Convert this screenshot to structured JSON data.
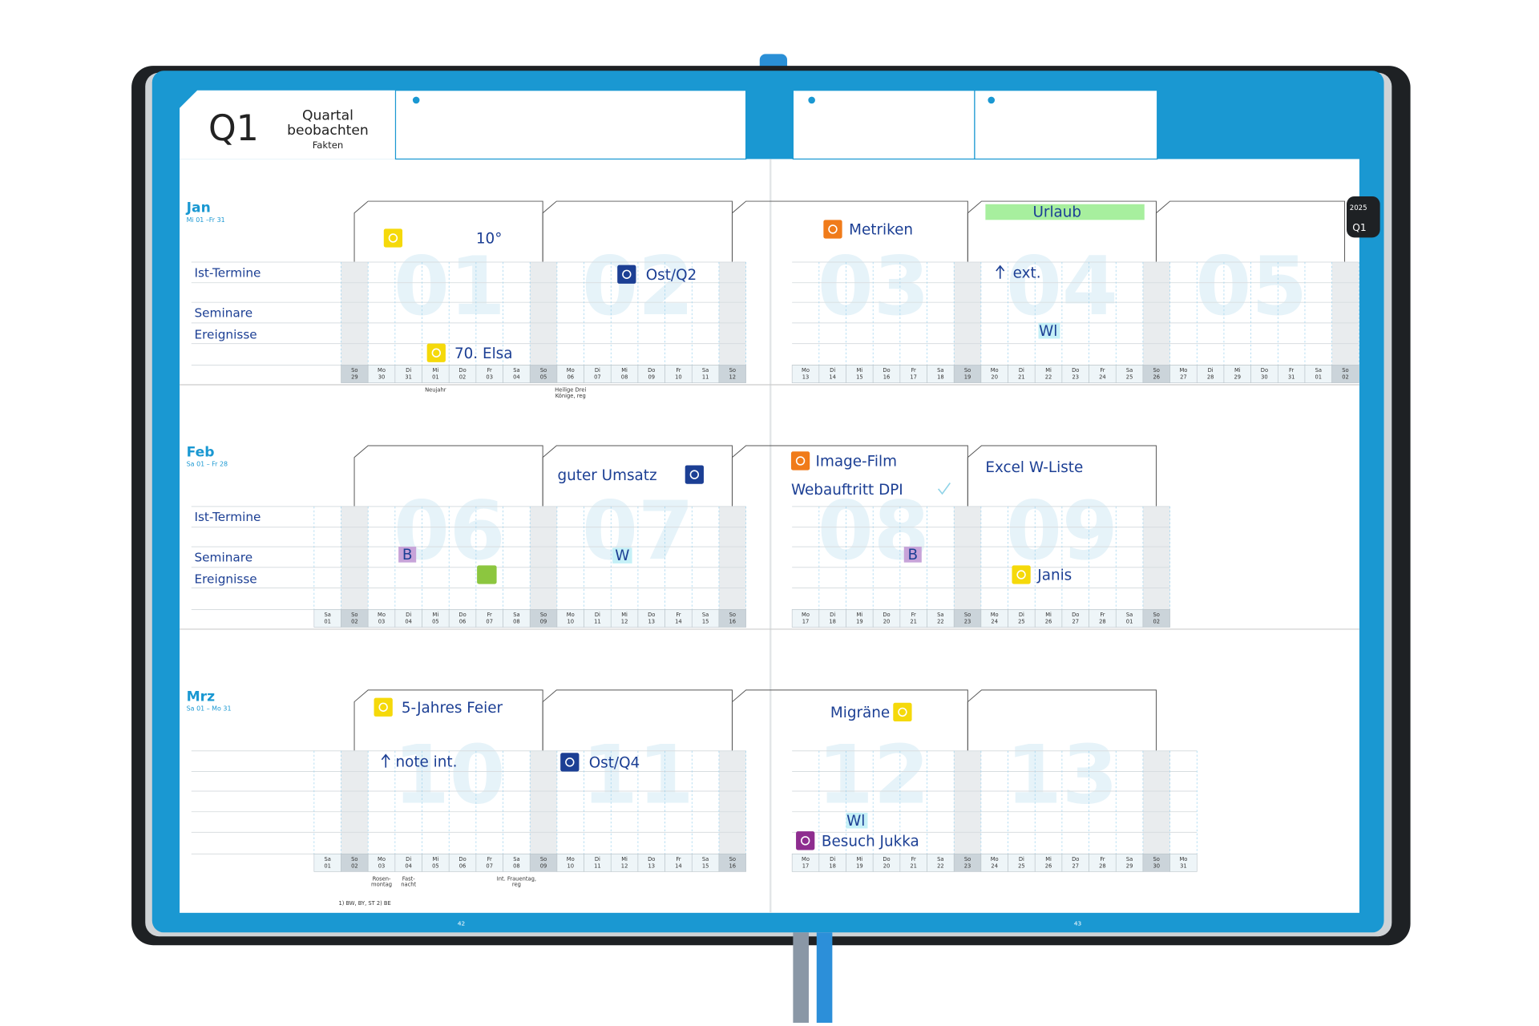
{
  "header": {
    "quarter": "Q1",
    "title_line1": "Quartal",
    "title_line2": "beobachten",
    "subtitle": "Fakten"
  },
  "side_tab": {
    "year": "2025",
    "quarter": "Q1"
  },
  "months": [
    {
      "name": "Jan",
      "range": "Mi 01 –Fr 31",
      "rows": [
        "Ist-Termine",
        "Seminare",
        "Ereignisse"
      ],
      "weeks": [
        "01",
        "02",
        "03",
        "04",
        "05"
      ],
      "days": [
        [
          "So",
          "29"
        ],
        [
          "Mo",
          "30"
        ],
        [
          "Di",
          "31"
        ],
        [
          "Mi",
          "01"
        ],
        [
          "Do",
          "02"
        ],
        [
          "Fr",
          "03"
        ],
        [
          "Sa",
          "04"
        ],
        [
          "So",
          "05"
        ],
        [
          "Mo",
          "06"
        ],
        [
          "Di",
          "07"
        ],
        [
          "Mi",
          "08"
        ],
        [
          "Do",
          "09"
        ],
        [
          "Fr",
          "10"
        ],
        [
          "Sa",
          "11"
        ],
        [
          "So",
          "12"
        ],
        [
          "Mo",
          "13"
        ],
        [
          "Di",
          "14"
        ],
        [
          "Mi",
          "15"
        ],
        [
          "Do",
          "16"
        ],
        [
          "Fr",
          "17"
        ],
        [
          "Sa",
          "18"
        ],
        [
          "So",
          "19"
        ],
        [
          "Mo",
          "20"
        ],
        [
          "Di",
          "21"
        ],
        [
          "Mi",
          "22"
        ],
        [
          "Do",
          "23"
        ],
        [
          "Fr",
          "24"
        ],
        [
          "Sa",
          "25"
        ],
        [
          "So",
          "26"
        ],
        [
          "Mo",
          "27"
        ],
        [
          "Di",
          "28"
        ],
        [
          "Mi",
          "29"
        ],
        [
          "Do",
          "30"
        ],
        [
          "Fr",
          "31"
        ],
        [
          "Sa",
          "01"
        ],
        [
          "So",
          "02"
        ]
      ],
      "holidays": [
        [
          "Neujahr"
        ],
        [
          "Heilige Drei",
          "Könige, reg"
        ]
      ],
      "notes": [
        "10°",
        "Ost/Q2",
        "Metriken",
        "Urlaub",
        "ext.",
        "Wl",
        "70. Elsa"
      ]
    },
    {
      "name": "Feb",
      "range": "Sa 01 – Fr 28",
      "rows": [
        "Ist-Termine",
        "Seminare",
        "Ereignisse"
      ],
      "weeks": [
        "06",
        "07",
        "08",
        "09"
      ],
      "days": [
        [
          "Sa",
          "01"
        ],
        [
          "So",
          "02"
        ],
        [
          "Mo",
          "03"
        ],
        [
          "Di",
          "04"
        ],
        [
          "Mi",
          "05"
        ],
        [
          "Do",
          "06"
        ],
        [
          "Fr",
          "07"
        ],
        [
          "Sa",
          "08"
        ],
        [
          "So",
          "09"
        ],
        [
          "Mo",
          "10"
        ],
        [
          "Di",
          "11"
        ],
        [
          "Mi",
          "12"
        ],
        [
          "Do",
          "13"
        ],
        [
          "Fr",
          "14"
        ],
        [
          "Sa",
          "15"
        ],
        [
          "So",
          "16"
        ],
        [
          "Mo",
          "17"
        ],
        [
          "Di",
          "18"
        ],
        [
          "Mi",
          "19"
        ],
        [
          "Do",
          "20"
        ],
        [
          "Fr",
          "21"
        ],
        [
          "Sa",
          "22"
        ],
        [
          "So",
          "23"
        ],
        [
          "Mo",
          "24"
        ],
        [
          "Di",
          "25"
        ],
        [
          "Mi",
          "26"
        ],
        [
          "Do",
          "27"
        ],
        [
          "Fr",
          "28"
        ],
        [
          "Sa",
          "01"
        ],
        [
          "So",
          "02"
        ]
      ],
      "holidays": [],
      "notes": [
        "guter Umsatz",
        "Image-Film",
        "Webauftritt DPI",
        "Excel W-Liste",
        "B",
        "W",
        "B",
        "Janis"
      ]
    },
    {
      "name": "Mrz",
      "range": "Sa 01 – Mo 31",
      "rows": [],
      "weeks": [
        "10",
        "11",
        "12",
        "13"
      ],
      "days": [
        [
          "Sa",
          "01"
        ],
        [
          "So",
          "02"
        ],
        [
          "Mo",
          "03"
        ],
        [
          "Di",
          "04"
        ],
        [
          "Mi",
          "05"
        ],
        [
          "Do",
          "06"
        ],
        [
          "Fr",
          "07"
        ],
        [
          "Sa",
          "08"
        ],
        [
          "So",
          "09"
        ],
        [
          "Mo",
          "10"
        ],
        [
          "Di",
          "11"
        ],
        [
          "Mi",
          "12"
        ],
        [
          "Do",
          "13"
        ],
        [
          "Fr",
          "14"
        ],
        [
          "Sa",
          "15"
        ],
        [
          "So",
          "16"
        ],
        [
          "Mo",
          "17"
        ],
        [
          "Di",
          "18"
        ],
        [
          "Mi",
          "19"
        ],
        [
          "Do",
          "20"
        ],
        [
          "Fr",
          "21"
        ],
        [
          "Sa",
          "22"
        ],
        [
          "So",
          "23"
        ],
        [
          "Mo",
          "24"
        ],
        [
          "Di",
          "25"
        ],
        [
          "Mi",
          "26"
        ],
        [
          "Do",
          "27"
        ],
        [
          "Fr",
          "28"
        ],
        [
          "Sa",
          "29"
        ],
        [
          "So",
          "30"
        ],
        [
          "Mo",
          "31"
        ]
      ],
      "holidays": [
        [
          "Rosen-",
          "montag"
        ],
        [
          "Fast-",
          "nacht"
        ],
        [
          "Int. Frauentag,",
          "reg"
        ]
      ],
      "notes": [
        "5-Jahres Feier",
        "note int.",
        "Ost/Q4",
        "Migräne",
        "Wl",
        "Besuch Jukka"
      ]
    }
  ],
  "footnote": "1) BW, BY, ST   2) BE",
  "page_numbers": [
    "42",
    "43"
  ]
}
